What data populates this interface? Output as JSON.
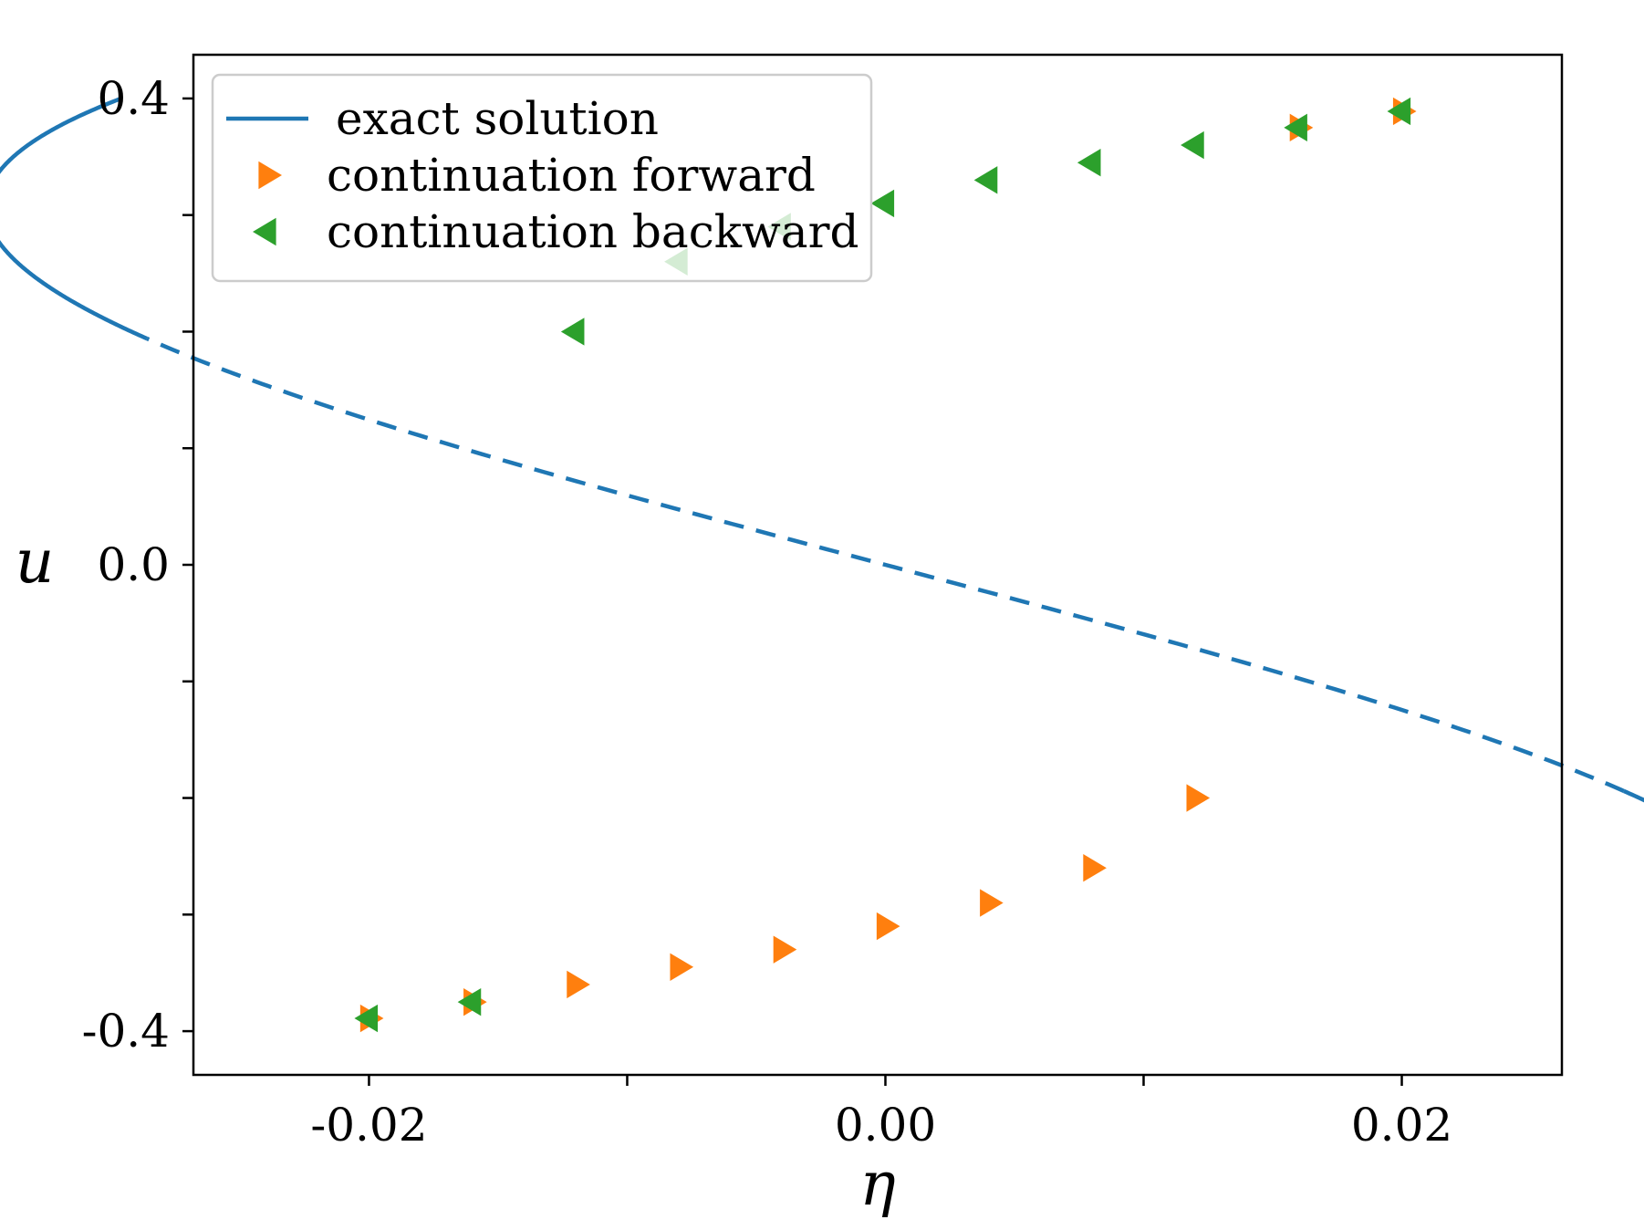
{
  "chart_data": {
    "type": "line",
    "title": "",
    "xlabel": "η",
    "ylabel": "u",
    "xlim": [
      -0.0268,
      0.0262
    ],
    "ylim": [
      -0.4375,
      0.4375
    ],
    "grid": false,
    "legend_position": "top-left",
    "x_ticks": [
      {
        "value": -0.02,
        "label": "-0.02"
      },
      {
        "value": -0.01,
        "label": ""
      },
      {
        "value": 0.0,
        "label": "0.00"
      },
      {
        "value": 0.01,
        "label": ""
      },
      {
        "value": 0.02,
        "label": "0.02"
      }
    ],
    "y_ticks": [
      {
        "value": -0.4,
        "label": "-0.4"
      },
      {
        "value": -0.3,
        "label": ""
      },
      {
        "value": -0.2,
        "label": ""
      },
      {
        "value": -0.1,
        "label": ""
      },
      {
        "value": 0.0,
        "label": "0.0"
      },
      {
        "value": 0.1,
        "label": ""
      },
      {
        "value": 0.2,
        "label": ""
      },
      {
        "value": 0.3,
        "label": ""
      },
      {
        "value": 0.4,
        "label": "0.4"
      }
    ],
    "series": [
      {
        "name": "exact solution",
        "kind": "line",
        "color": "#1f77b4",
        "curve": "eta = 0.6*u^3 - 0.17*u",
        "u_range": [
          -0.4,
          0.4
        ],
        "dashed_u_range": [
          -0.194,
          0.194
        ]
      },
      {
        "name": "continuation forward",
        "kind": "marker",
        "marker": "triangle-right",
        "color": "#ff7f0e",
        "points": [
          {
            "x": -0.02,
            "y": -0.389
          },
          {
            "x": -0.016,
            "y": -0.375
          },
          {
            "x": -0.012,
            "y": -0.36
          },
          {
            "x": -0.008,
            "y": -0.345
          },
          {
            "x": -0.004,
            "y": -0.33
          },
          {
            "x": 0.0,
            "y": -0.31
          },
          {
            "x": 0.004,
            "y": -0.29
          },
          {
            "x": 0.008,
            "y": -0.26
          },
          {
            "x": 0.012,
            "y": -0.2
          },
          {
            "x": 0.016,
            "y": 0.375
          },
          {
            "x": 0.02,
            "y": 0.389
          }
        ]
      },
      {
        "name": "continuation backward",
        "kind": "marker",
        "marker": "triangle-left",
        "color": "#2ca02c",
        "points": [
          {
            "x": 0.02,
            "y": 0.389
          },
          {
            "x": 0.016,
            "y": 0.375
          },
          {
            "x": 0.012,
            "y": 0.36
          },
          {
            "x": 0.008,
            "y": 0.345
          },
          {
            "x": 0.004,
            "y": 0.33
          },
          {
            "x": 0.0,
            "y": 0.31
          },
          {
            "x": -0.004,
            "y": 0.29
          },
          {
            "x": -0.008,
            "y": 0.26
          },
          {
            "x": -0.012,
            "y": 0.2
          },
          {
            "x": -0.016,
            "y": -0.375
          },
          {
            "x": -0.02,
            "y": -0.389
          }
        ]
      }
    ]
  }
}
